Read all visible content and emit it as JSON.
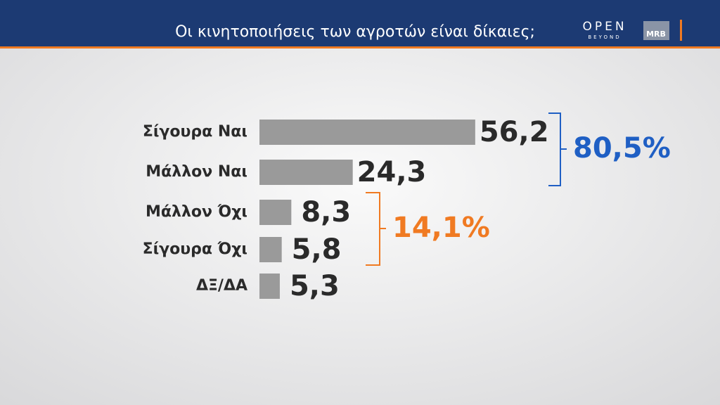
{
  "header": {
    "title": "Οι κινητοποιήσεις των αγροτών είναι δίκαιες;",
    "logo_main": "OPEN",
    "logo_sub": "BEYOND",
    "logo_partner": "MRB"
  },
  "chart_data": {
    "type": "bar",
    "orientation": "horizontal",
    "categories": [
      "Σίγουρα Ναι",
      "Μάλλον Ναι",
      "Μάλλον Όχι",
      "Σίγουρα Όχι",
      "ΔΞ/ΔΑ"
    ],
    "values": [
      56.2,
      24.3,
      8.3,
      5.8,
      5.3
    ],
    "value_labels": [
      "56,2",
      "24,3",
      "8,3",
      "5,8",
      "5,3"
    ],
    "color": "#9a9a9a",
    "annotations": [
      {
        "text": "80,5%",
        "color": "#1f5fc4"
      },
      {
        "text": "14,1%",
        "color": "#f07a22"
      }
    ]
  }
}
